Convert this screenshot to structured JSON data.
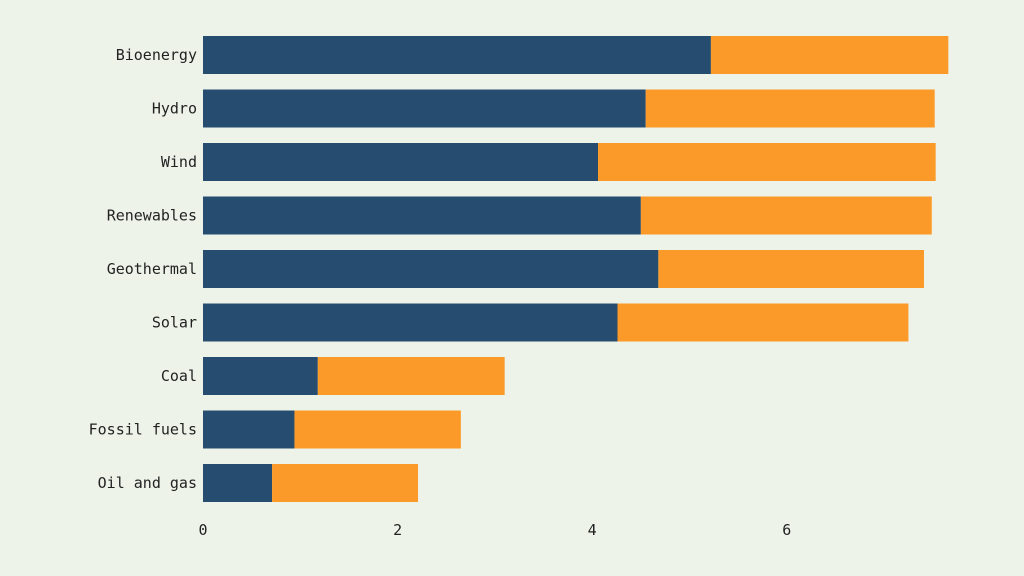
{
  "chart_data": {
    "type": "bar",
    "orientation": "horizontal",
    "stacked": true,
    "title": "",
    "xlabel": "",
    "ylabel": "",
    "categories": [
      "Bioenergy",
      "Hydro",
      "Wind",
      "Renewables",
      "Geothermal",
      "Solar",
      "Coal",
      "Fossil fuels",
      "Oil and gas"
    ],
    "series": [
      {
        "color": "#264c6f",
        "values": [
          5.22,
          4.55,
          4.06,
          4.5,
          4.68,
          4.26,
          1.18,
          0.94,
          0.71
        ]
      },
      {
        "color": "#fb9a28",
        "values": [
          2.44,
          2.97,
          3.47,
          2.99,
          2.73,
          2.99,
          1.92,
          1.71,
          1.5
        ]
      }
    ],
    "xlim": [
      0,
      7.7
    ],
    "xticks": [
      0,
      2,
      4,
      6
    ],
    "grid": false,
    "legend": "none"
  }
}
